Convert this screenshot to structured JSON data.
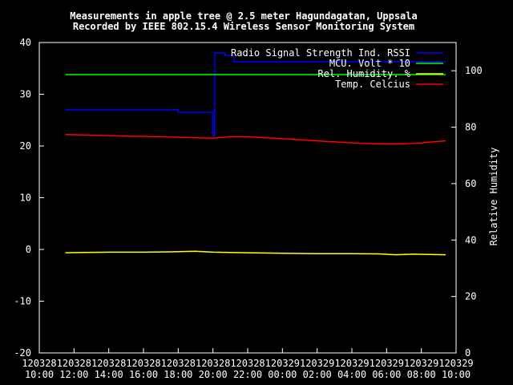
{
  "chart_data": {
    "type": "line",
    "title": "Measurements in apple tree @ 2.5 meter Hagundagatan, Uppsala",
    "subtitle": "Recorded by IEEE 802.15.4 Wireless Sensor Monitoring System",
    "ylabel_right": "Relative Humidity",
    "ylim_left": [
      -20,
      40
    ],
    "ylim_right": [
      0,
      110
    ],
    "yticks_left": [
      -20,
      -10,
      0,
      10,
      20,
      30,
      40
    ],
    "yticks_right": [
      0,
      20,
      40,
      60,
      80,
      100
    ],
    "xlim_hours": [
      10,
      34
    ],
    "xticks": [
      {
        "h": 10,
        "line1": "120328",
        "line2": "10:00"
      },
      {
        "h": 12,
        "line1": "120328",
        "line2": "12:00"
      },
      {
        "h": 14,
        "line1": "120328",
        "line2": "14:00"
      },
      {
        "h": 16,
        "line1": "120328",
        "line2": "16:00"
      },
      {
        "h": 18,
        "line1": "120328",
        "line2": "18:00"
      },
      {
        "h": 20,
        "line1": "120328",
        "line2": "20:00"
      },
      {
        "h": 22,
        "line1": "120328",
        "line2": "22:00"
      },
      {
        "h": 24,
        "line1": "120329",
        "line2": "00:00"
      },
      {
        "h": 26,
        "line1": "120329",
        "line2": "02:00"
      },
      {
        "h": 28,
        "line1": "120329",
        "line2": "04:00"
      },
      {
        "h": 30,
        "line1": "120329",
        "line2": "06:00"
      },
      {
        "h": 32,
        "line1": "120329",
        "line2": "08:00"
      },
      {
        "h": 34,
        "line1": "120329",
        "line2": "10:00"
      }
    ],
    "legend_position": "top-right",
    "series": [
      {
        "name": "Radio Signal Strength Ind. RSSI",
        "color": "#0000ff",
        "axis": "left",
        "step": true,
        "x": [
          11.5,
          17.5,
          18.0,
          18.5,
          19.1,
          19.8,
          20.0,
          20.1,
          20.1,
          20.7,
          21.0,
          21.2,
          33.4
        ],
        "y": [
          27,
          27,
          26.5,
          26.5,
          26.5,
          26.5,
          22,
          22,
          38,
          37.5,
          37.5,
          36.3,
          36.3
        ]
      },
      {
        "name": "MCU. Volt * 10",
        "color": "#00ff00",
        "axis": "left",
        "x": [
          11.5,
          33.4
        ],
        "y": [
          33.8,
          33.8
        ]
      },
      {
        "name": "Rel. Humidity.  %",
        "color": "#ffff00",
        "axis": "right",
        "x": [
          11.5,
          12.5,
          14.0,
          16.0,
          17.5,
          19.0,
          20.0,
          21.0,
          22.0,
          24.0,
          26.0,
          28.0,
          29.5,
          30.5,
          31.5,
          33.4
        ],
        "y": [
          35.5,
          35.6,
          35.7,
          35.7,
          35.8,
          36.0,
          35.7,
          35.6,
          35.5,
          35.3,
          35.2,
          35.2,
          35.1,
          34.8,
          35.0,
          34.8
        ]
      },
      {
        "name": "Temp. Celcius",
        "color": "#ff0000",
        "axis": "left",
        "x": [
          11.5,
          13.0,
          15.0,
          17.0,
          19.0,
          20.0,
          21.0,
          22.0,
          24.0,
          26.0,
          28.0,
          29.5,
          31.0,
          32.0,
          33.0,
          33.4
        ],
        "y": [
          22.2,
          22.1,
          21.9,
          21.8,
          21.6,
          21.5,
          21.8,
          21.8,
          21.4,
          21.0,
          20.6,
          20.4,
          20.4,
          20.6,
          20.9,
          21.0
        ]
      }
    ]
  }
}
